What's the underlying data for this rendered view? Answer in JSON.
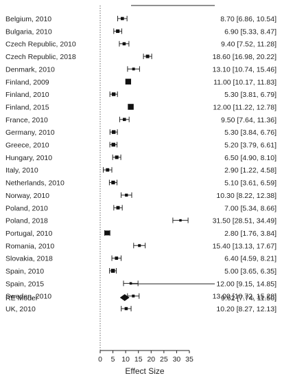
{
  "chart_data": {
    "type": "forest",
    "xlabel": "Effect Size",
    "xlim": [
      0,
      35
    ],
    "xticks": [
      0,
      5,
      10,
      15,
      20,
      25,
      30,
      35
    ],
    "reference_line": 0,
    "studies": [
      {
        "label": "Belgium, 2010",
        "estimate": 8.7,
        "lower": 6.86,
        "upper": 10.54,
        "ci_text": "8.70 [6.86, 10.54]"
      },
      {
        "label": "Bulgaria, 2010",
        "estimate": 6.9,
        "lower": 5.33,
        "upper": 8.47,
        "ci_text": "6.90 [5.33, 8.47]"
      },
      {
        "label": "Czech Republic, 2010",
        "estimate": 9.4,
        "lower": 7.52,
        "upper": 11.28,
        "ci_text": "9.40 [7.52, 11.28]"
      },
      {
        "label": "Czech Republic, 2018",
        "estimate": 18.6,
        "lower": 16.98,
        "upper": 20.22,
        "ci_text": "18.60 [16.98, 20.22]"
      },
      {
        "label": "Denmark, 2010",
        "estimate": 13.1,
        "lower": 10.74,
        "upper": 15.46,
        "ci_text": "13.10 [10.74, 15.46]"
      },
      {
        "label": "Finland, 2009",
        "estimate": 11.0,
        "lower": 10.17,
        "upper": 11.83,
        "ci_text": "11.00 [10.17, 11.83]"
      },
      {
        "label": "Finland, 2010",
        "estimate": 5.3,
        "lower": 3.81,
        "upper": 6.79,
        "ci_text": "5.30 [3.81, 6.79]"
      },
      {
        "label": "Finland, 2015",
        "estimate": 12.0,
        "lower": 11.22,
        "upper": 12.78,
        "ci_text": "12.00 [11.22, 12.78]"
      },
      {
        "label": "France, 2010",
        "estimate": 9.5,
        "lower": 7.64,
        "upper": 11.36,
        "ci_text": "9.50 [7.64, 11.36]"
      },
      {
        "label": "Germany, 2010",
        "estimate": 5.3,
        "lower": 3.84,
        "upper": 6.76,
        "ci_text": "5.30 [3.84, 6.76]"
      },
      {
        "label": "Greece, 2010",
        "estimate": 5.2,
        "lower": 3.79,
        "upper": 6.61,
        "ci_text": "5.20 [3.79, 6.61]"
      },
      {
        "label": "Hungary, 2010",
        "estimate": 6.5,
        "lower": 4.9,
        "upper": 8.1,
        "ci_text": "6.50 [4.90, 8.10]"
      },
      {
        "label": "Italy, 2010",
        "estimate": 2.9,
        "lower": 1.22,
        "upper": 4.58,
        "ci_text": "2.90 [1.22, 4.58]"
      },
      {
        "label": "Netherlands, 2010",
        "estimate": 5.1,
        "lower": 3.61,
        "upper": 6.59,
        "ci_text": "5.10 [3.61, 6.59]"
      },
      {
        "label": "Norway, 2010",
        "estimate": 10.3,
        "lower": 8.22,
        "upper": 12.38,
        "ci_text": "10.30 [8.22, 12.38]"
      },
      {
        "label": "Poland, 2010",
        "estimate": 7.0,
        "lower": 5.34,
        "upper": 8.66,
        "ci_text": "7.00 [5.34, 8.66]"
      },
      {
        "label": "Poland, 2018",
        "estimate": 31.5,
        "lower": 28.51,
        "upper": 34.49,
        "ci_text": "31.50 [28.51, 34.49]"
      },
      {
        "label": "Portugal, 2010",
        "estimate": 2.8,
        "lower": 1.76,
        "upper": 3.84,
        "ci_text": "2.80 [1.76, 3.84]"
      },
      {
        "label": "Romania, 2010",
        "estimate": 15.4,
        "lower": 13.13,
        "upper": 17.67,
        "ci_text": "15.40 [13.13, 17.67]"
      },
      {
        "label": "Slovakia, 2018",
        "estimate": 6.4,
        "lower": 4.59,
        "upper": 8.21,
        "ci_text": "6.40 [4.59, 8.21]"
      },
      {
        "label": "Spain, 2010",
        "estimate": 5.0,
        "lower": 3.65,
        "upper": 6.35,
        "ci_text": "5.00 [3.65, 6.35]"
      },
      {
        "label": "Spain, 2015",
        "estimate": 12.0,
        "lower": 9.15,
        "upper": 14.85,
        "ci_text": "12.00 [9.15, 14.85]"
      },
      {
        "label": "Sweden, 2010",
        "estimate": 13.0,
        "lower": 10.72,
        "upper": 15.28,
        "ci_text": "13.00 [10.72, 15.28]"
      },
      {
        "label": "UK, 2010",
        "estimate": 10.2,
        "lower": 8.27,
        "upper": 12.13,
        "ci_text": "10.20 [8.27, 12.13]"
      }
    ],
    "summary": {
      "label": "RE Model",
      "estimate": 9.62,
      "lower": 7.74,
      "upper": 11.5,
      "ci_text": "9.62 [7.74, 11.50]"
    },
    "colors": {
      "marker": "#111111",
      "line": "#222222",
      "reference": "#666666"
    }
  }
}
